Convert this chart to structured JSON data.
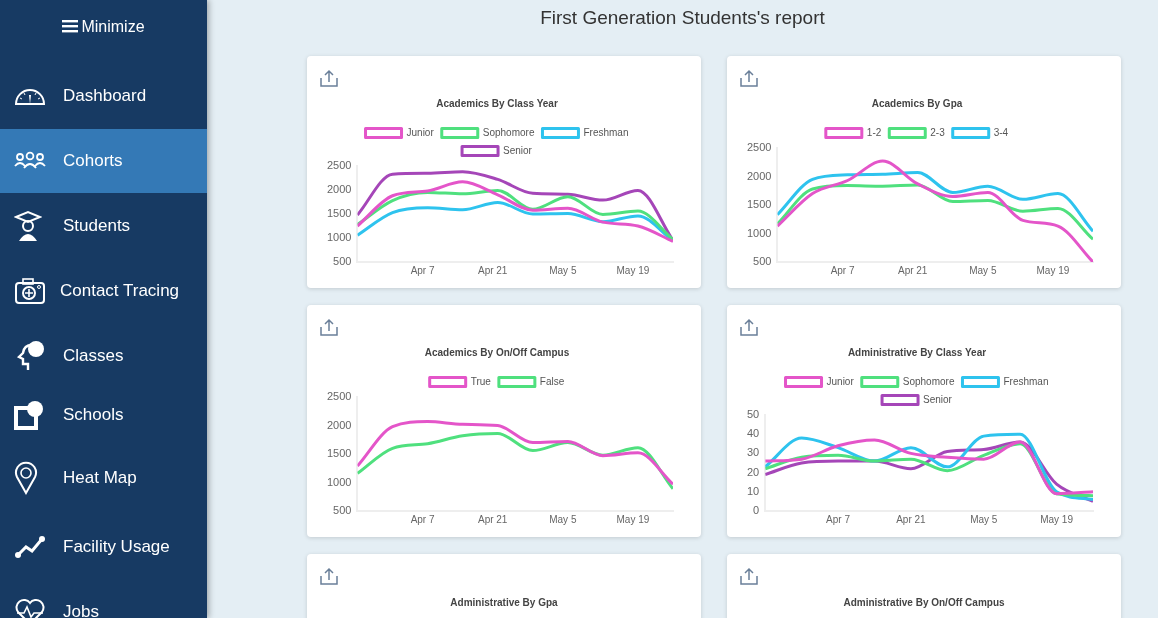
{
  "chart_data": [
    {
      "type": "other",
      "title": "First Generation Students's report",
      "annotations": [
        "Minimize",
        "Dashboard",
        "Cohorts",
        "Students",
        "Contact Tracing",
        "Classes",
        "Schools",
        "Heat Map",
        "Facility Usage",
        "Jobs"
      ]
    },
    {
      "type": "line",
      "title": "Academics By Class Year",
      "x": [
        "--03-25",
        "--04-01",
        "--04-08",
        "--04-15",
        "--04-22",
        "--04-29",
        "--05-06",
        "--05-13",
        "--05-20",
        "--05-27"
      ],
      "xlim": [
        "--03-25",
        "--05-27"
      ],
      "xticks": [
        {
          "value": "--04-07",
          "label": "Apr 7"
        },
        {
          "value": "--04-21",
          "label": "Apr 21"
        },
        {
          "value": "--05-05",
          "label": "May 5"
        },
        {
          "value": "--05-19",
          "label": "May 19"
        }
      ],
      "ylim": [
        500,
        2500
      ],
      "yticks": [
        500,
        1000,
        1500,
        2000,
        2500
      ],
      "grid": false,
      "legend": "top",
      "marker": "none",
      "series": [
        {
          "name": "Junior",
          "color": "#e455c9",
          "values": [
            1250,
            1880,
            1980,
            2170,
            1900,
            1580,
            1620,
            1330,
            1250,
            930
          ]
        },
        {
          "name": "Sophomore",
          "color": "#4fe07e",
          "values": [
            1280,
            1780,
            1950,
            1920,
            1990,
            1600,
            1860,
            1490,
            1560,
            970
          ]
        },
        {
          "name": "Freshman",
          "color": "#2ec3ee",
          "values": [
            1060,
            1530,
            1630,
            1590,
            1740,
            1500,
            1510,
            1340,
            1460,
            940
          ]
        },
        {
          "name": "Senior",
          "color": "#a546b8",
          "values": [
            1480,
            2330,
            2350,
            2380,
            2220,
            1930,
            1910,
            1790,
            1990,
            950
          ]
        }
      ]
    },
    {
      "type": "line",
      "title": "Academics By Gpa",
      "x": [
        "--03-25",
        "--04-01",
        "--04-08",
        "--04-15",
        "--04-22",
        "--04-29",
        "--05-06",
        "--05-13",
        "--05-20",
        "--05-27"
      ],
      "xlim": [
        "--03-25",
        "--05-27"
      ],
      "xticks": [
        {
          "value": "--04-07",
          "label": "Apr 7"
        },
        {
          "value": "--04-21",
          "label": "Apr 21"
        },
        {
          "value": "--05-05",
          "label": "May 5"
        },
        {
          "value": "--05-19",
          "label": "May 19"
        }
      ],
      "ylim": [
        500,
        2500
      ],
      "yticks": [
        500,
        1000,
        1500,
        2000,
        2500
      ],
      "grid": false,
      "legend": "top",
      "marker": "none",
      "series": [
        {
          "name": "1-2",
          "color": "#e455c9",
          "values": [
            1130,
            1700,
            1930,
            2270,
            1870,
            1650,
            1720,
            1230,
            1130,
            500
          ]
        },
        {
          "name": "2-3",
          "color": "#4fe07e",
          "values": [
            1170,
            1780,
            1840,
            1830,
            1850,
            1560,
            1580,
            1390,
            1440,
            900
          ]
        },
        {
          "name": "3-4",
          "color": "#2ec3ee",
          "values": [
            1330,
            1950,
            2030,
            2040,
            2070,
            1720,
            1830,
            1600,
            1700,
            1040
          ]
        }
      ]
    },
    {
      "type": "line",
      "title": "Academics By On/Off Campus",
      "x": [
        "--03-25",
        "--04-01",
        "--04-08",
        "--04-15",
        "--04-22",
        "--04-29",
        "--05-06",
        "--05-13",
        "--05-20",
        "--05-27"
      ],
      "xlim": [
        "--03-25",
        "--05-27"
      ],
      "xticks": [
        {
          "value": "--04-07",
          "label": "Apr 7"
        },
        {
          "value": "--04-21",
          "label": "Apr 21"
        },
        {
          "value": "--05-05",
          "label": "May 5"
        },
        {
          "value": "--05-19",
          "label": "May 19"
        }
      ],
      "ylim": [
        500,
        2500
      ],
      "yticks": [
        500,
        1000,
        1500,
        2000,
        2500
      ],
      "grid": false,
      "legend": "top",
      "marker": "none",
      "series": [
        {
          "name": "True",
          "color": "#e455c9",
          "values": [
            1290,
            1980,
            2070,
            2020,
            2000,
            1700,
            1720,
            1470,
            1520,
            970
          ]
        },
        {
          "name": "False",
          "color": "#4fe07e",
          "values": [
            1160,
            1600,
            1680,
            1820,
            1860,
            1560,
            1700,
            1480,
            1610,
            890
          ]
        }
      ]
    },
    {
      "type": "line",
      "title": "Administrative By Class Year",
      "x": [
        "--03-24",
        "--03-31",
        "--04-07",
        "--04-14",
        "--04-21",
        "--04-28",
        "--05-05",
        "--05-12",
        "--05-19",
        "--05-26"
      ],
      "xlim": [
        "--03-24",
        "--05-26"
      ],
      "xticks": [
        {
          "value": "--04-07",
          "label": "Apr 7"
        },
        {
          "value": "--04-21",
          "label": "Apr 21"
        },
        {
          "value": "--05-05",
          "label": "May 5"
        },
        {
          "value": "--05-19",
          "label": "May 19"
        }
      ],
      "ylim": [
        0,
        50
      ],
      "yticks": [
        0,
        10,
        20,
        30,
        40,
        50
      ],
      "grid": false,
      "legend": "top",
      "marker": "none",
      "series": [
        {
          "name": "Junior",
          "color": "#e455c9",
          "values": [
            26,
            27,
            34,
            37,
            30,
            28,
            27,
            36,
            9,
            10
          ]
        },
        {
          "name": "Sophomore",
          "color": "#4fe07e",
          "values": [
            22,
            28,
            29,
            26,
            27,
            21,
            29,
            35,
            9,
            8
          ]
        },
        {
          "name": "Freshman",
          "color": "#2ec3ee",
          "values": [
            23,
            38,
            33,
            26,
            33,
            23,
            39,
            40,
            10,
            6
          ]
        },
        {
          "name": "Senior",
          "color": "#a546b8",
          "values": [
            19,
            25,
            26,
            26,
            22,
            31,
            32,
            36,
            14,
            5
          ]
        }
      ]
    },
    {
      "type": "other",
      "title": "Administrative By Gpa"
    },
    {
      "type": "other",
      "title": "Administrative By On/Off Campus"
    }
  ]
}
